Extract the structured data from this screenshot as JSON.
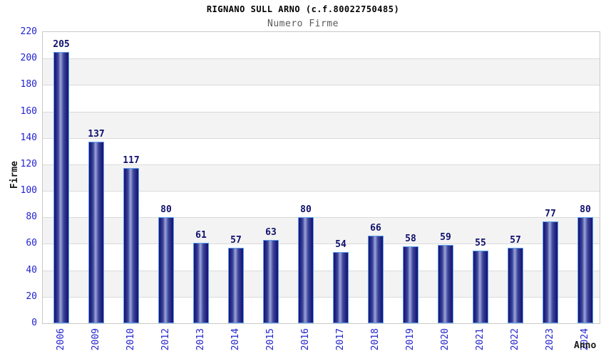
{
  "chart_data": {
    "type": "bar",
    "title": "RIGNANO SULL ARNO (c.f.80022750485)",
    "subtitle": "Numero Firme",
    "xlabel": "Anno",
    "ylabel": "Firme",
    "categories": [
      "2006",
      "2009",
      "2010",
      "2012",
      "2013",
      "2014",
      "2015",
      "2016",
      "2017",
      "2018",
      "2019",
      "2020",
      "2021",
      "2022",
      "2023",
      "2024"
    ],
    "values": [
      205,
      137,
      117,
      80,
      61,
      57,
      63,
      80,
      54,
      66,
      58,
      59,
      55,
      57,
      77,
      80
    ],
    "ylim": [
      0,
      220
    ],
    "ytick_step": 20,
    "yticks": [
      0,
      20,
      40,
      60,
      80,
      100,
      120,
      140,
      160,
      180,
      200,
      220
    ],
    "grid": "horizontal gridlines with alternating white/gray bands",
    "legend": "none",
    "colors": {
      "bar_dark": "#171670",
      "bar_highlight": "#9ba5d9",
      "bar_border": "#5ca0f0",
      "tick_label": "#2323d0",
      "value_label": "#10106e",
      "band_gray": "#f3f3f3",
      "gridline": "#dadada",
      "plot_border": "#c9c9c9",
      "title_color": "#000000",
      "subtitle_color": "#5a5a5a"
    }
  }
}
